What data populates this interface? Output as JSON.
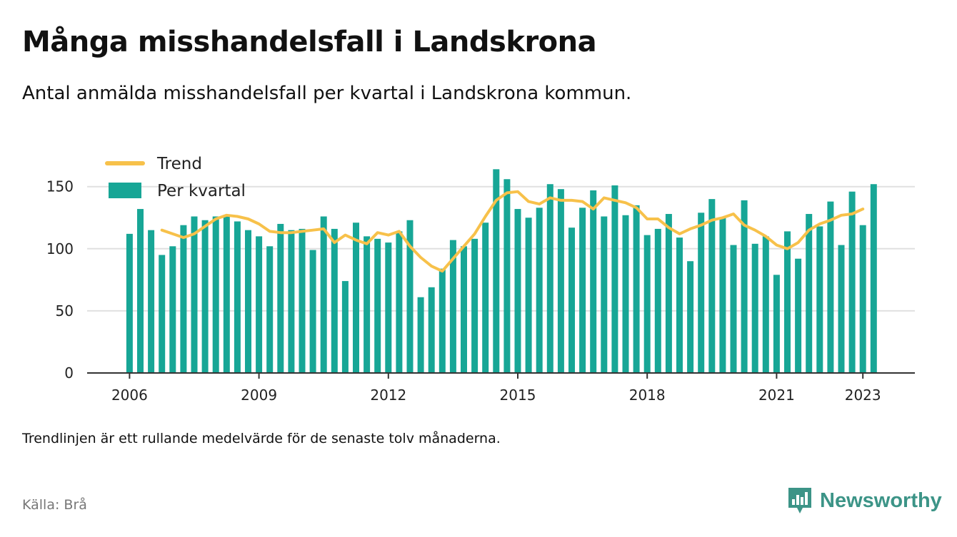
{
  "title": "Många misshandelsfall i Landskrona",
  "subtitle": "Antal anmälda misshandelsfall per kvartal i Landskrona kommun.",
  "note": "Trendlinjen är ett rullande medelvärde för de senaste tolv månaderna.",
  "source": "Källa: Brå",
  "brand": {
    "name": "Newsworthy",
    "icon": "newsworthy-bar-chart-logo-icon",
    "color": "#3c9487"
  },
  "chart_data": {
    "type": "bar",
    "x_start": "2006 Q1",
    "x_ticks": [
      "2006",
      "2009",
      "2012",
      "2015",
      "2018",
      "2021",
      "2023"
    ],
    "y_ticks": [
      0,
      50,
      100,
      150
    ],
    "ylim": [
      0,
      165
    ],
    "grid": true,
    "legend_position": "top-left",
    "colors": {
      "bars": "#17a696",
      "trend": "#f7c14a",
      "grid": "#e0e0e0",
      "axis": "#333333"
    },
    "series": [
      {
        "name": "Per kvartal",
        "type": "bar",
        "values": [
          112,
          132,
          115,
          95,
          102,
          119,
          126,
          123,
          126,
          127,
          122,
          115,
          110,
          102,
          120,
          115,
          116,
          99,
          126,
          116,
          74,
          121,
          110,
          108,
          105,
          114,
          123,
          61,
          69,
          84,
          107,
          102,
          108,
          121,
          164,
          156,
          132,
          125,
          133,
          152,
          148,
          117,
          133,
          147,
          126,
          151,
          127,
          135,
          111,
          116,
          128,
          109,
          90,
          129,
          140,
          125,
          103,
          139,
          104,
          110,
          79,
          114,
          92,
          128,
          118,
          138,
          103,
          146,
          119,
          152
        ]
      },
      {
        "name": "Trend",
        "type": "line",
        "start_index": 3,
        "values": [
          115,
          112,
          109,
          112,
          118,
          124,
          127,
          126,
          124,
          120,
          114,
          113,
          113,
          114,
          115,
          116,
          105,
          111,
          107,
          104,
          113,
          111,
          114,
          102,
          93,
          86,
          82,
          92,
          102,
          112,
          126,
          139,
          145,
          146,
          138,
          136,
          141,
          139,
          139,
          138,
          132,
          141,
          139,
          137,
          133,
          124,
          124,
          117,
          112,
          116,
          119,
          123,
          125,
          128,
          119,
          115,
          110,
          103,
          100,
          105,
          115,
          120,
          123,
          127,
          128,
          132
        ]
      }
    ]
  }
}
